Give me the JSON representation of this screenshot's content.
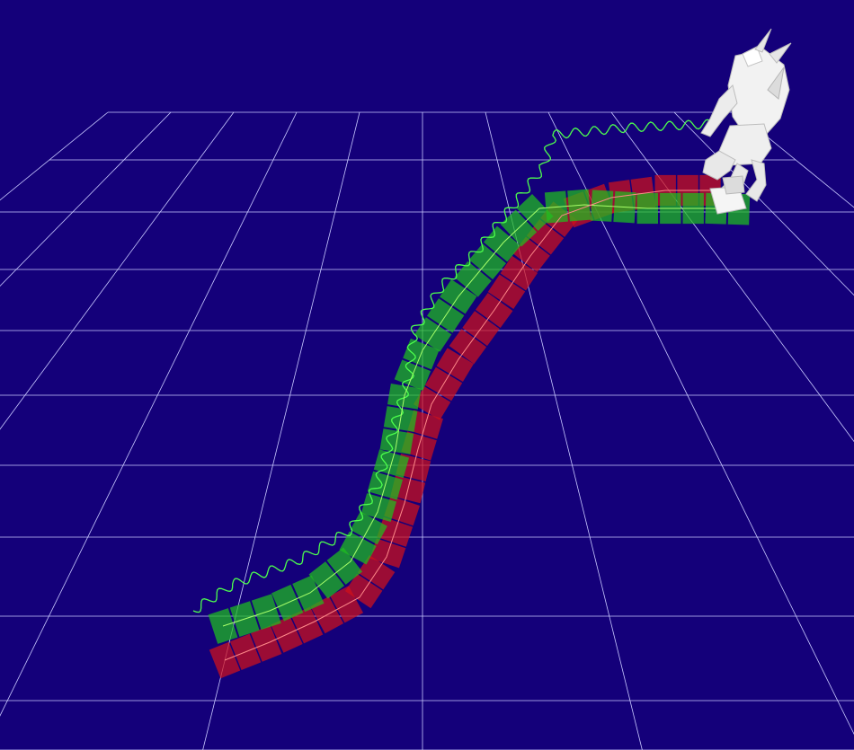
{
  "viewport": {
    "background": "#14007a",
    "grid_color": "#c8c8ff"
  },
  "footsteps": {
    "left_color": "#1fbf1f",
    "right_color": "#d0101a",
    "left_count": 34,
    "right_count": 34
  },
  "trajectories": {
    "com_color": "#4dff4d",
    "zmp_color": "#a8ff6a"
  },
  "robot": {
    "icon": "humanoid-robot-model",
    "color": "#f2f2f2"
  }
}
